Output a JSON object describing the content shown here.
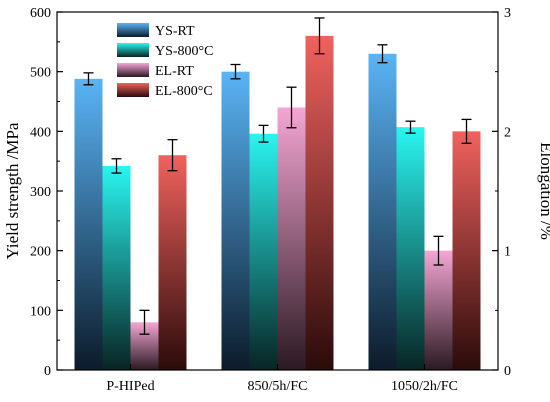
{
  "chart_data": {
    "type": "bar",
    "categories": [
      "P-HIPed",
      "850/5h/FC",
      "1050/2h/FC"
    ],
    "ylabel": "Yield strength /MPa",
    "y2label": "Elongation /%",
    "ylim": [
      0,
      600
    ],
    "y2lim": [
      0,
      3
    ],
    "y_ticks": [
      "0",
      "100",
      "200",
      "300",
      "400",
      "500",
      "600"
    ],
    "y2_ticks": [
      "0",
      "1",
      "2",
      "3"
    ],
    "legend_position": "top-left",
    "grid": false,
    "series": [
      {
        "name": "YS-RT",
        "axis": "left",
        "values": [
          488,
          500,
          530
        ],
        "errors": [
          10,
          12,
          15
        ],
        "color_top": "#5ab4f5",
        "color_bottom": "#0c1b2a"
      },
      {
        "name": "YS-800°C",
        "axis": "left",
        "values": [
          342,
          396,
          407
        ],
        "errors": [
          12,
          14,
          10
        ],
        "color_top": "#2af5f0",
        "color_bottom": "#082423"
      },
      {
        "name": "EL-RT",
        "axis": "right",
        "values": [
          0.4,
          2.2,
          1.0
        ],
        "errors": [
          0.1,
          0.17,
          0.12
        ],
        "color_top": "#f5a6d4",
        "color_bottom": "#2a1a22"
      },
      {
        "name": "EL-800°C",
        "axis": "right",
        "values": [
          1.8,
          2.8,
          2.0
        ],
        "errors": [
          0.13,
          0.15,
          0.1
        ],
        "color_top": "#f0625e",
        "color_bottom": "#2a0b0a"
      }
    ]
  }
}
